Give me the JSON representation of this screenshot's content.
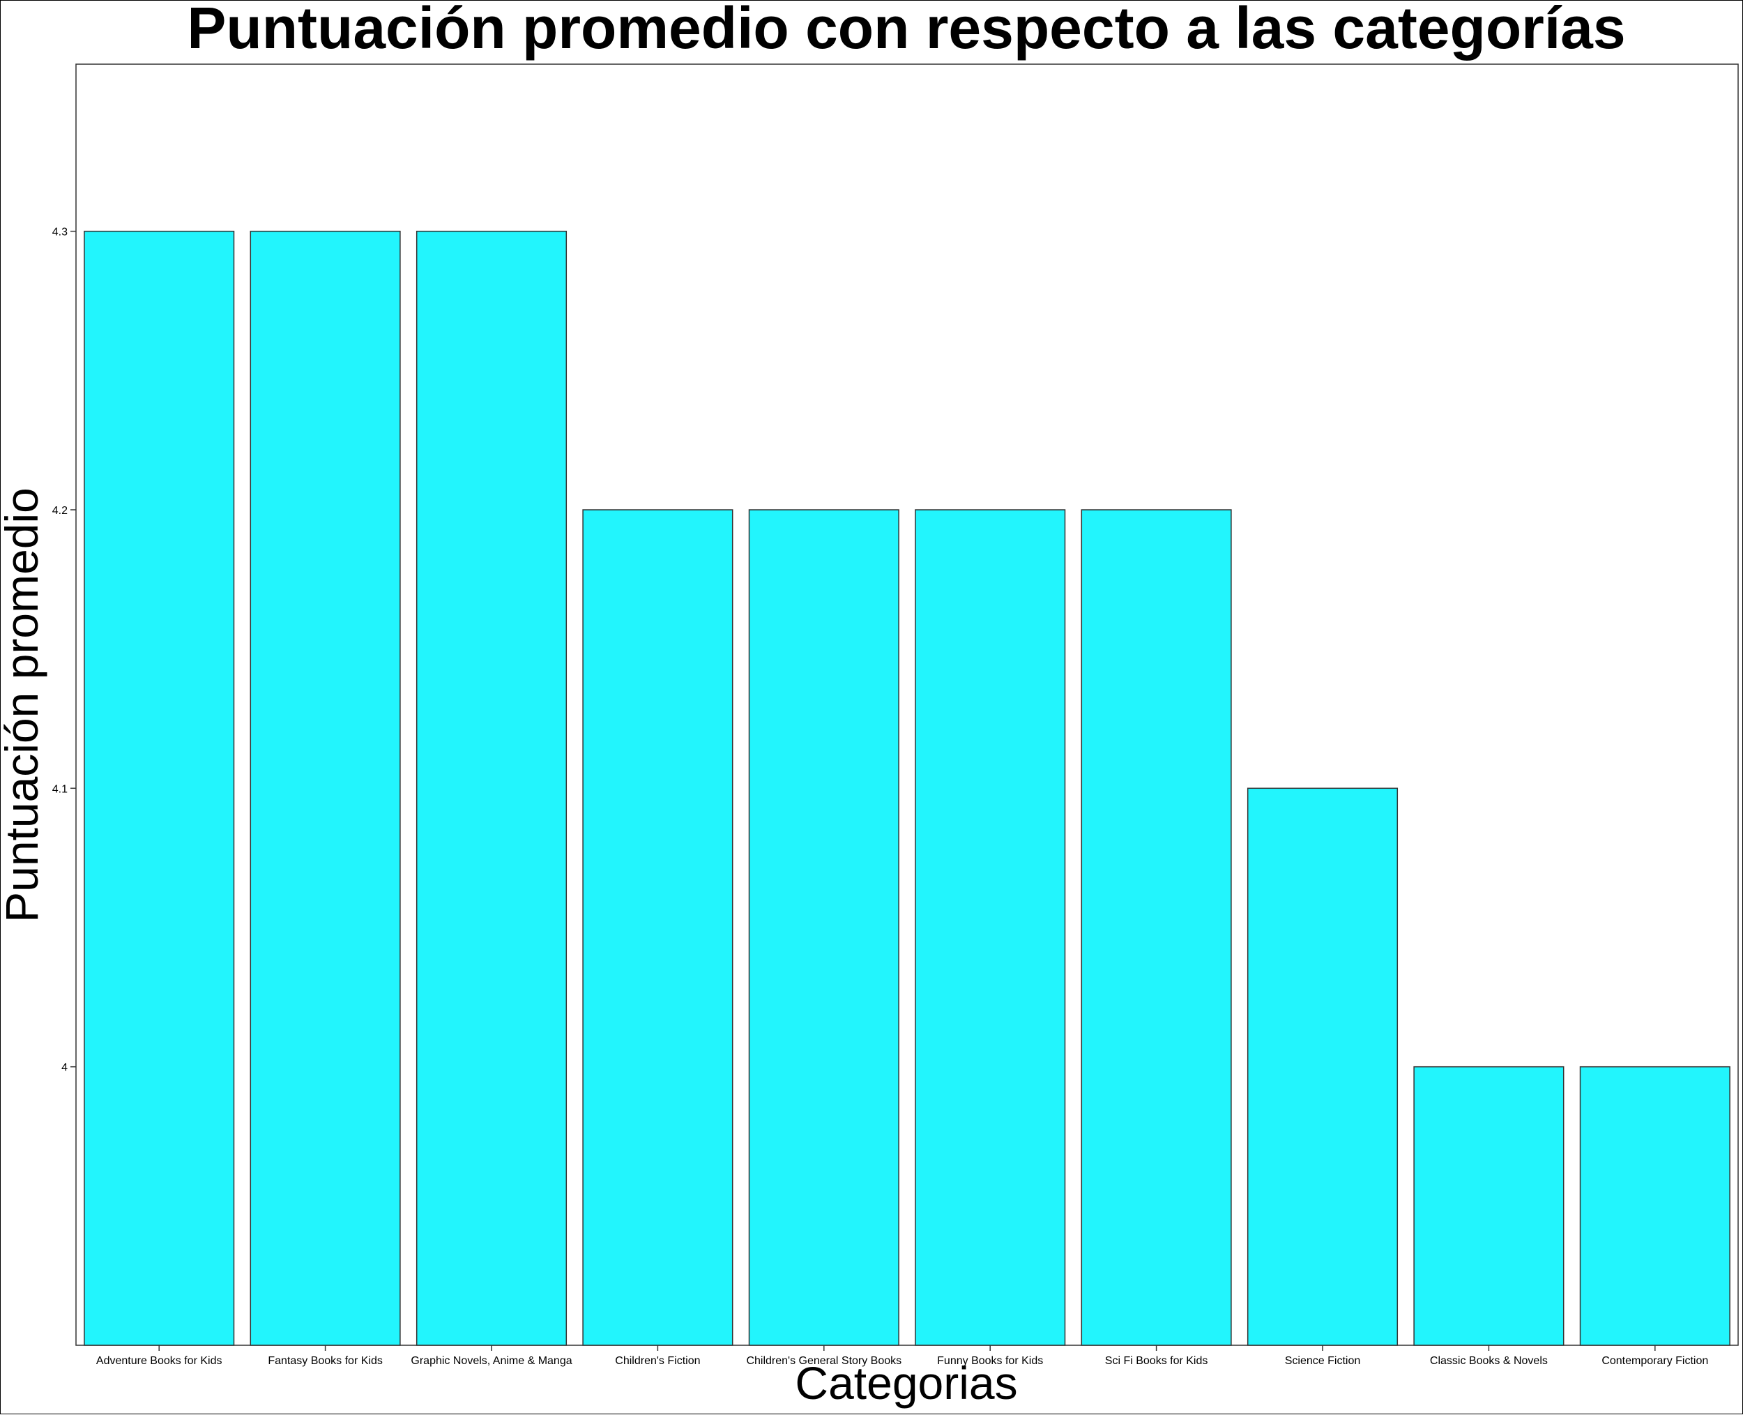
{
  "chart_data": {
    "type": "bar",
    "title": "Puntuación promedio con respecto a las categorías",
    "xlabel": "Categorias",
    "ylabel": "Puntuación promedio",
    "categories": [
      "Adventure Books for Kids",
      "Fantasy Books for Kids",
      "Graphic Novels, Anime & Manga",
      "Children's Fiction",
      "Children's General Story Books",
      "Funny Books for Kids",
      "Sci Fi Books for Kids",
      "Science Fiction",
      "Classic Books & Novels",
      "Contemporary Fiction"
    ],
    "values": [
      4.3,
      4.3,
      4.3,
      4.2,
      4.2,
      4.2,
      4.2,
      4.1,
      4.0,
      4.0
    ],
    "yticks": [
      4,
      4.1,
      4.2,
      4.3
    ],
    "ytick_labels": [
      "4",
      "4.1",
      "4.2",
      "4.3"
    ],
    "ylim": [
      3.9,
      4.36
    ],
    "grid": false,
    "legend": "none",
    "bar_color": "#22f5fd",
    "bar_edge_color": "#333333"
  }
}
